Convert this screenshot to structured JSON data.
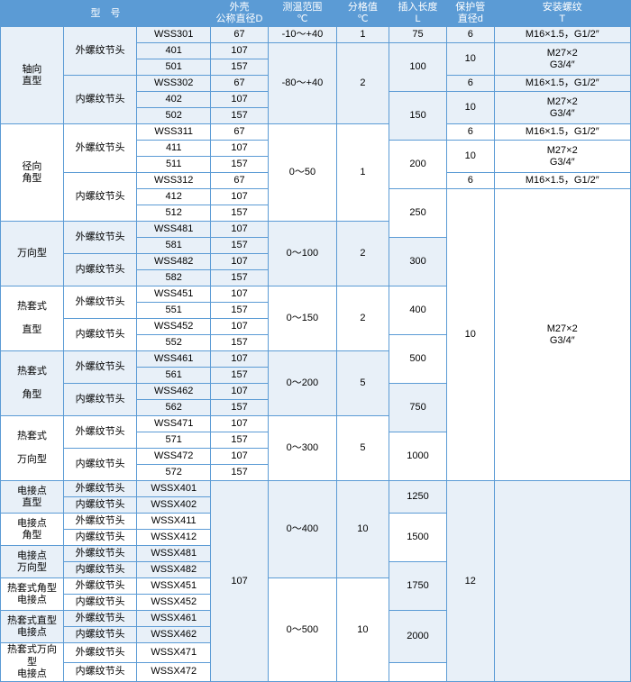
{
  "headers": {
    "type": "型　号",
    "diameter": "外壳\n公称直径D",
    "range": "测温范围\n℃",
    "division": "分格值\n℃",
    "length": "插入长度\nL",
    "protection": "保护管\n直径d",
    "thread": "安装螺纹\nT"
  },
  "cats": {
    "axial": "轴向\n直型",
    "radial": "径向\n角型",
    "universal": "万向型",
    "hotstraight": "热套式\n\n直型",
    "hotangle": "热套式\n\n角型",
    "hotuniversal": "热套式\n\n万向型",
    "elec_straight": "电接点\n直型",
    "elec_angle": "电接点\n角型",
    "elec_universal": "电接点\n万向型",
    "hot_angle_elec": "热套式角型\n电接点",
    "hot_straight_elec": "热套式直型\n电接点",
    "hot_universal_elec": "热套式万向型\n电接点"
  },
  "subcats": {
    "ext": "外螺纹节头",
    "int": "内螺纹节头"
  },
  "models": {
    "wss301": "WSS301",
    "wss401": "401",
    "wss501": "501",
    "wss302": "WSS302",
    "wss402": "402",
    "wss502": "502",
    "wss311": "WSS311",
    "wss411": "411",
    "wss511": "511",
    "wss312": "WSS312",
    "wss412": "412",
    "wss512": "512",
    "wss481": "WSS481",
    "wss581": "581",
    "wss482": "WSS482",
    "wss582": "582",
    "wss451": "WSS451",
    "wss551": "551",
    "wss452": "WSS452",
    "wss552": "552",
    "wss461": "WSS461",
    "wss561": "561",
    "wss462": "WSS462",
    "wss562": "562",
    "wss471": "WSS471",
    "wss571": "571",
    "wss472": "WSS472",
    "wss572": "572",
    "wssx401": "WSSX401",
    "wssx402": "WSSX402",
    "wssx411": "WSSX411",
    "wssx412": "WSSX412",
    "wssx481": "WSSX481",
    "wssx482": "WSSX482",
    "wssx451": "WSSX451",
    "wssx452": "WSSX452",
    "wssx461": "WSSX461",
    "wssx462": "WSSX462",
    "wssx471": "WSSX471",
    "wssx472": "WSSX472"
  },
  "dia": {
    "d67": "67",
    "d107": "107",
    "d157": "157"
  },
  "ranges": {
    "r1": "-10～+40",
    "r2": "-80～+40",
    "r3": "0～50",
    "r4": "0～100",
    "r5": "0～150",
    "r6": "0～200",
    "r7": "0～300",
    "r8": "0～400",
    "r9": "0～500"
  },
  "divs": {
    "v1": "1",
    "v2": "2",
    "v5": "5",
    "v10": "10"
  },
  "lens": {
    "l75": "75",
    "l100": "100",
    "l150": "150",
    "l200": "200",
    "l250": "250",
    "l300": "300",
    "l400": "400",
    "l500": "500",
    "l750": "750",
    "l1000": "1000",
    "l1250": "1250",
    "l1500": "1500",
    "l1750": "1750",
    "l2000": "2000"
  },
  "prot": {
    "p6": "6",
    "p10": "10",
    "p12": "12"
  },
  "threads": {
    "t1": "M16×1.5，G1/2″",
    "t2": "M27×2\nG3/4″"
  }
}
